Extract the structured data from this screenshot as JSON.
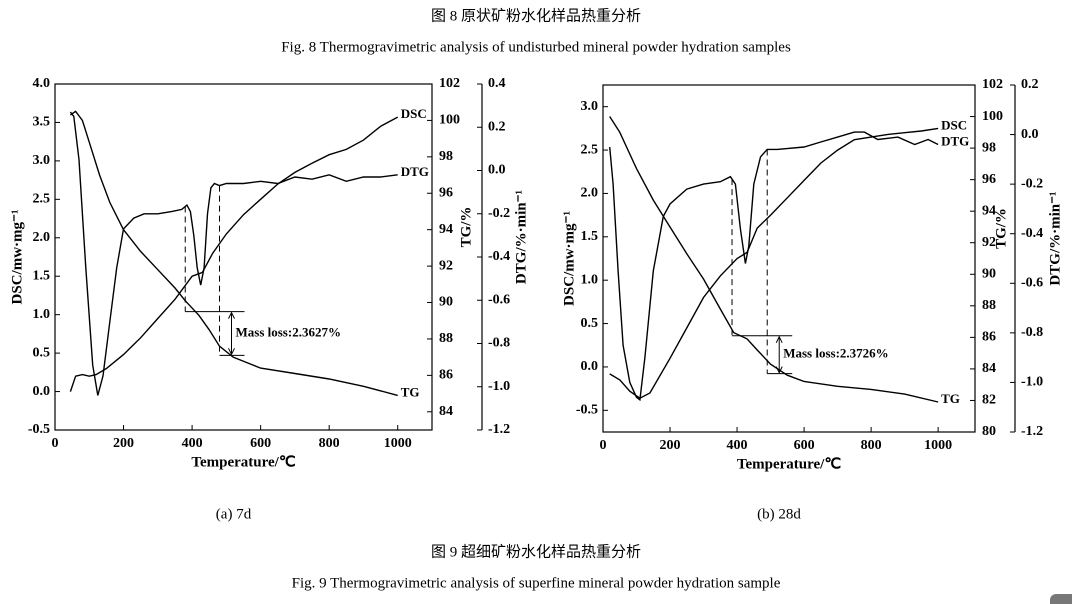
{
  "figure8": {
    "title_cn": "图 8  原状矿粉水化样品热重分析",
    "title_en": "Fig. 8 Thermogravimetric analysis of undisturbed mineral powder hydration samples"
  },
  "chart_data": [
    {
      "type": "line",
      "subtitle": "(a) 7d",
      "xlabel": "Temperature/℃",
      "ylabel": "DSC/mw·mg⁻¹",
      "y2label": "TG/%",
      "y3label": "DTG/%·min⁻¹",
      "xlim": [
        0,
        1100
      ],
      "xticks": [
        0,
        200,
        400,
        600,
        800,
        1000
      ],
      "ylim": [
        -0.5,
        4.0
      ],
      "yticks": [
        {
          "value": 4.0,
          "label": "4.0"
        },
        3.5,
        {
          "value": 3.0,
          "label": "3.0"
        },
        2.5,
        {
          "value": 2.0,
          "label": "2.0"
        },
        1.5,
        {
          "value": 1.0,
          "label": "1.0"
        },
        0.5,
        {
          "value": 0.0,
          "label": "0.0"
        },
        -0.5
      ],
      "y2lim": [
        83,
        102
      ],
      "y2ticks": [
        84,
        86,
        88,
        90,
        92,
        94,
        96,
        98,
        100,
        102
      ],
      "y3lim": [
        -1.2,
        0.4
      ],
      "y3ticks": [
        0.4,
        0.2,
        {
          "value": 0.0,
          "label": "0.0"
        },
        -0.2,
        -0.4,
        -0.6,
        -0.8,
        {
          "value": -1.0,
          "label": "-1.0"
        },
        -1.2
      ],
      "series": [
        {
          "name": "DSC",
          "color": "#000000",
          "axis": "y",
          "x": [
            45,
            60,
            80,
            100,
            120,
            150,
            200,
            250,
            300,
            350,
            400,
            430,
            460,
            500,
            550,
            600,
            650,
            700,
            750,
            800,
            850,
            900,
            950,
            1000
          ],
          "values": [
            0.0,
            0.2,
            0.22,
            0.2,
            0.22,
            0.3,
            0.48,
            0.7,
            0.95,
            1.2,
            1.5,
            1.55,
            1.8,
            2.05,
            2.3,
            2.5,
            2.7,
            2.85,
            2.97,
            3.08,
            3.15,
            3.27,
            3.45,
            3.57
          ]
        },
        {
          "name": "DTG",
          "color": "#000000",
          "axis": "y3",
          "x": [
            45,
            55,
            70,
            90,
            110,
            125,
            140,
            160,
            180,
            200,
            230,
            260,
            300,
            340,
            370,
            385,
            395,
            405,
            415,
            425,
            435,
            445,
            455,
            465,
            480,
            500,
            550,
            600,
            650,
            700,
            750,
            800,
            850,
            900,
            950,
            1000
          ],
          "values": [
            0.27,
            0.25,
            0.05,
            -0.45,
            -0.9,
            -1.04,
            -0.95,
            -0.7,
            -0.45,
            -0.27,
            -0.22,
            -0.2,
            -0.2,
            -0.19,
            -0.18,
            -0.16,
            -0.19,
            -0.3,
            -0.45,
            -0.53,
            -0.45,
            -0.2,
            -0.08,
            -0.06,
            -0.07,
            -0.06,
            -0.06,
            -0.05,
            -0.06,
            -0.03,
            -0.04,
            -0.02,
            -0.05,
            -0.03,
            -0.03,
            -0.02
          ]
        },
        {
          "name": "TG",
          "color": "#000000",
          "axis": "y2",
          "x": [
            45,
            60,
            80,
            100,
            130,
            160,
            200,
            250,
            300,
            350,
            380,
            420,
            450,
            480,
            520,
            560,
            600,
            700,
            800,
            900,
            1000
          ],
          "values": [
            100.3,
            100.5,
            100.0,
            98.8,
            97.0,
            95.5,
            94.0,
            92.8,
            91.8,
            90.8,
            90.1,
            89.3,
            88.5,
            87.6,
            87.0,
            86.7,
            86.4,
            86.1,
            85.8,
            85.4,
            84.9
          ]
        }
      ],
      "annotation": {
        "text": "Mass loss:2.3627%",
        "x": [
          380,
          480
        ],
        "y2": [
          89.5,
          87.1
        ]
      }
    },
    {
      "type": "line",
      "subtitle": "(b) 28d",
      "xlabel": "Temperature/℃",
      "ylabel": "DSC/mw·mg⁻¹",
      "y2label": "TG/%",
      "y3label": "DTG/%·min⁻¹",
      "xlim": [
        0,
        1110
      ],
      "xticks": [
        0,
        200,
        400,
        600,
        800,
        1000
      ],
      "ylim": [
        -0.75,
        3.25
      ],
      "yticks": [
        {
          "value": 3.0,
          "label": "3.0"
        },
        2.5,
        {
          "value": 2.0,
          "label": "2.0"
        },
        1.5,
        {
          "value": 1.0,
          "label": "1.0"
        },
        0.5,
        {
          "value": 0.0,
          "label": "0.0"
        },
        -0.5
      ],
      "y2lim": [
        80,
        102
      ],
      "y2ticks": [
        80,
        82,
        84,
        86,
        88,
        90,
        92,
        94,
        96,
        98,
        100,
        102
      ],
      "y3lim": [
        -1.2,
        0.2
      ],
      "y3ticks": [
        0.2,
        {
          "value": 0.0,
          "label": "0.0"
        },
        -0.2,
        -0.4,
        -0.6,
        -0.8,
        {
          "value": -1.0,
          "label": "-1.0"
        },
        -1.2
      ],
      "series": [
        {
          "name": "DSC",
          "color": "#000000",
          "axis": "y",
          "x": [
            20,
            50,
            80,
            110,
            140,
            200,
            250,
            300,
            350,
            400,
            430,
            460,
            500,
            550,
            600,
            650,
            700,
            750,
            800,
            850,
            900,
            950,
            1000
          ],
          "values": [
            -0.08,
            -0.15,
            -0.28,
            -0.36,
            -0.3,
            0.1,
            0.45,
            0.8,
            1.05,
            1.25,
            1.32,
            1.6,
            1.75,
            1.95,
            2.15,
            2.35,
            2.5,
            2.62,
            2.65,
            2.68,
            2.7,
            2.72,
            2.75
          ]
        },
        {
          "name": "DTG",
          "color": "#000000",
          "axis": "y3",
          "x": [
            20,
            30,
            45,
            60,
            80,
            100,
            110,
            125,
            150,
            180,
            200,
            250,
            300,
            350,
            380,
            395,
            410,
            425,
            435,
            450,
            470,
            490,
            520,
            600,
            650,
            700,
            750,
            780,
            820,
            880,
            930,
            970,
            1000
          ],
          "values": [
            -0.05,
            -0.2,
            -0.55,
            -0.85,
            -1.0,
            -1.06,
            -1.07,
            -0.9,
            -0.55,
            -0.33,
            -0.28,
            -0.22,
            -0.2,
            -0.19,
            -0.17,
            -0.2,
            -0.38,
            -0.52,
            -0.45,
            -0.2,
            -0.09,
            -0.06,
            -0.06,
            -0.05,
            -0.03,
            -0.01,
            0.01,
            0.01,
            -0.02,
            -0.01,
            -0.04,
            -0.02,
            -0.04
          ]
        },
        {
          "name": "TG",
          "color": "#000000",
          "axis": "y2",
          "x": [
            20,
            50,
            100,
            150,
            200,
            250,
            300,
            350,
            390,
            430,
            460,
            500,
            550,
            600,
            700,
            800,
            900,
            1000
          ],
          "values": [
            100.0,
            99.0,
            96.7,
            94.7,
            93.0,
            91.3,
            89.7,
            87.8,
            86.3,
            85.9,
            85.2,
            84.3,
            83.6,
            83.2,
            82.9,
            82.7,
            82.4,
            81.9
          ]
        }
      ],
      "annotation": {
        "text": "Mass loss:2.3726%",
        "x": [
          385,
          490
        ],
        "y2": [
          86.1,
          83.7
        ]
      }
    }
  ],
  "figure9": {
    "title_cn": "图 9  超细矿粉水化样品热重分析",
    "title_en": "Fig. 9 Thermogravimetric analysis of superfine mineral powder hydration sample"
  }
}
